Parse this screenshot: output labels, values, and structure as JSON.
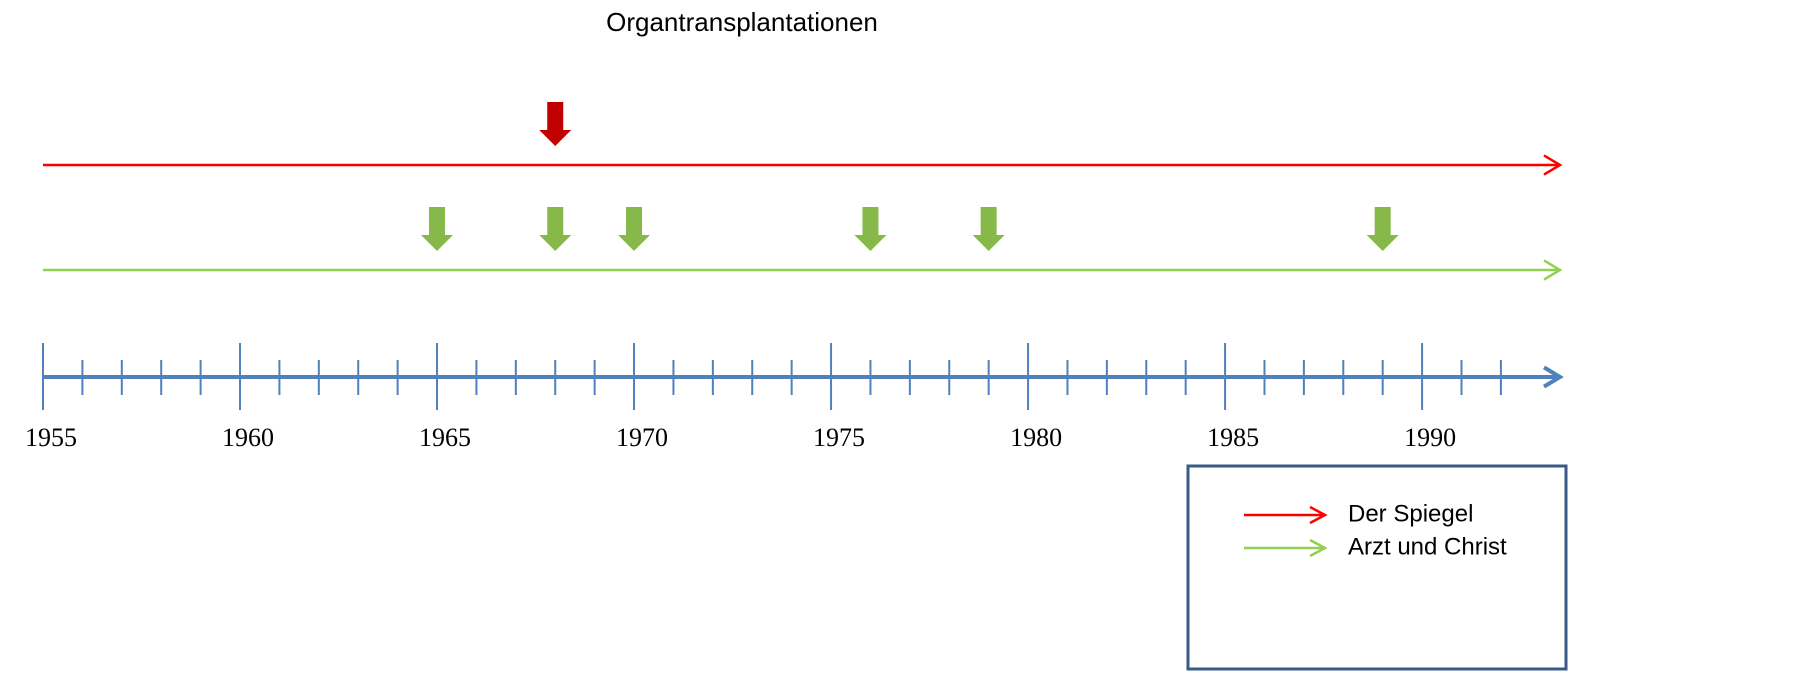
{
  "chart_data": {
    "type": "timeline",
    "title": "Organtransplantationen",
    "series": [
      {
        "name": "Der Spiegel",
        "color": "#ff0000",
        "marker_color": "#c00000",
        "values": [
          1968
        ]
      },
      {
        "name": "Arzt und Christ",
        "color": "#92d050",
        "marker_color": "#86b84a",
        "values": [
          1965,
          1968,
          1970,
          1976,
          1979,
          1989
        ]
      }
    ],
    "xlim": [
      1955,
      1993.5
    ],
    "xticks": [
      1955,
      1960,
      1965,
      1970,
      1975,
      1980,
      1985,
      1990
    ],
    "xminorticks": [
      1956,
      1957,
      1958,
      1959,
      1961,
      1962,
      1963,
      1964,
      1966,
      1967,
      1968,
      1969,
      1971,
      1972,
      1973,
      1974,
      1976,
      1977,
      1978,
      1979,
      1981,
      1982,
      1983,
      1984,
      1986,
      1987,
      1988,
      1989,
      1991,
      1992
    ],
    "axis_color": "#4f81bd",
    "legend": "lower right"
  }
}
